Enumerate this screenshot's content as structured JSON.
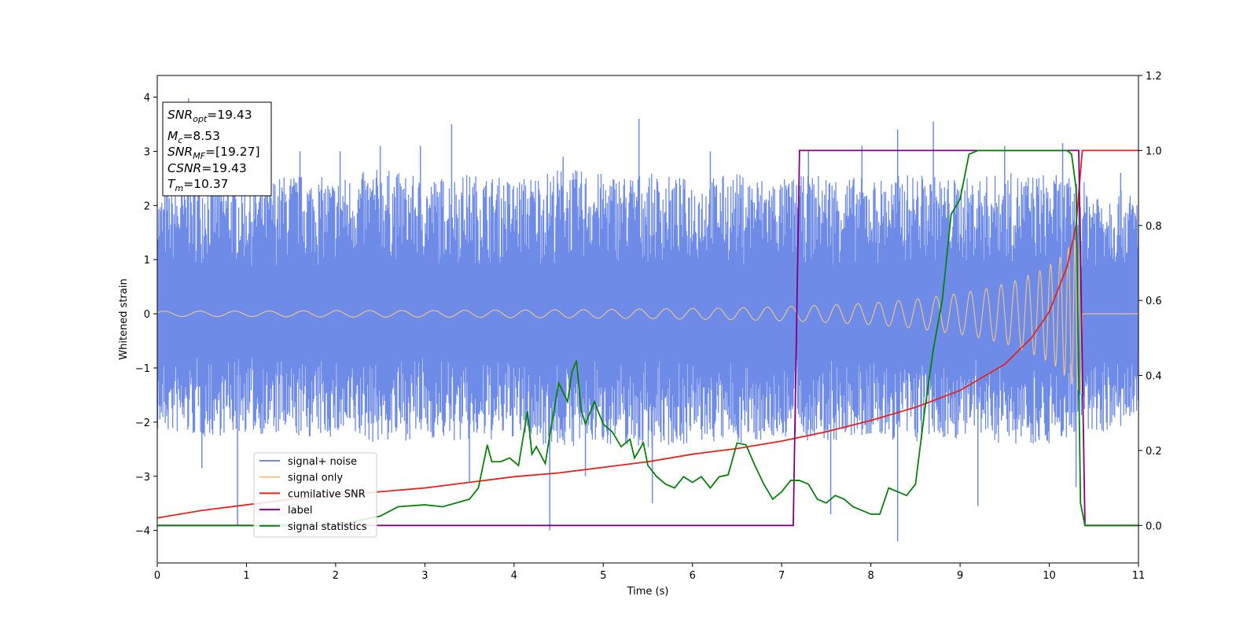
{
  "chart_data": {
    "type": "line",
    "xlabel": "Time (s)",
    "ylabel": "Whitened strain",
    "xlim": [
      0,
      11
    ],
    "ylim": [
      -4.6,
      4.4
    ],
    "y2lim": [
      -0.1,
      1.2
    ],
    "xticks": [
      "0",
      "1",
      "2",
      "3",
      "4",
      "5",
      "6",
      "7",
      "8",
      "9",
      "10",
      "11"
    ],
    "yticks": [
      "−4",
      "−3",
      "−2",
      "−1",
      "0",
      "1",
      "2",
      "3",
      "4"
    ],
    "y2ticks": [
      "0.0",
      "0.2",
      "0.4",
      "0.6",
      "0.8",
      "1.0",
      "1.2"
    ],
    "grid": false,
    "legend_position": "lower-left",
    "info_box": {
      "lines": [
        {
          "sym": "SNR",
          "sub": "opt",
          "val": "=19.43"
        },
        {
          "sym": "M",
          "sub": "c",
          "val": "=8.53"
        },
        {
          "sym": "SNR",
          "sub": "MF",
          "val": "=[19.27]"
        },
        {
          "sym": "CSNR",
          "sub": "",
          "val": "=19.43"
        },
        {
          "sym": "T",
          "sub": "m",
          "val": "=10.37"
        }
      ]
    },
    "noise_series": {
      "name": "signal+ noise",
      "color": "#6f8be8",
      "axis": "left",
      "x": [
        0,
        0.5,
        1,
        1.5,
        2,
        2.5,
        3,
        3.5,
        4,
        4.5,
        5,
        5.5,
        6,
        6.5,
        7,
        7.5,
        8,
        8.5,
        9,
        9.5,
        10,
        10.5,
        11
      ],
      "upper": [
        2.2,
        2.6,
        2.4,
        2.6,
        2.5,
        2.7,
        2.5,
        2.6,
        2.5,
        2.7,
        2.6,
        2.6,
        2.5,
        2.6,
        2.5,
        2.6,
        2.5,
        2.6,
        2.5,
        2.6,
        2.6,
        2.4,
        2.2
      ],
      "lower": [
        -2.2,
        -2.3,
        -2.2,
        -2.3,
        -2.3,
        -2.4,
        -2.3,
        -2.4,
        -2.3,
        -2.5,
        -2.4,
        -2.5,
        -2.4,
        -2.4,
        -2.3,
        -2.4,
        -2.3,
        -2.4,
        -2.3,
        -2.4,
        -2.4,
        -2.2,
        -2.1
      ],
      "spikes": [
        [
          0.35,
          3.98
        ],
        [
          0.5,
          -2.85
        ],
        [
          0.9,
          -3.9
        ],
        [
          1.1,
          3.1
        ],
        [
          1.6,
          3.0
        ],
        [
          2.05,
          3.0
        ],
        [
          2.5,
          3.1
        ],
        [
          2.95,
          3.1
        ],
        [
          3.3,
          3.5
        ],
        [
          3.5,
          -3.1
        ],
        [
          4.4,
          -4.0
        ],
        [
          4.55,
          2.9
        ],
        [
          4.8,
          -3.0
        ],
        [
          5.4,
          3.6
        ],
        [
          5.55,
          -3.5
        ],
        [
          6.2,
          3.0
        ],
        [
          7.3,
          3.0
        ],
        [
          7.55,
          -3.7
        ],
        [
          7.9,
          3.1
        ],
        [
          8.3,
          3.4
        ],
        [
          8.3,
          -4.2
        ],
        [
          8.7,
          3.55
        ],
        [
          9.2,
          -3.55
        ],
        [
          9.5,
          3.1
        ],
        [
          10.15,
          3.15
        ],
        [
          10.3,
          -3.2
        ],
        [
          10.8,
          2.6
        ]
      ]
    },
    "series": [
      {
        "name": "signal only",
        "color": "#f5c782",
        "axis": "left",
        "x": [
          0,
          1,
          2,
          3,
          4,
          5,
          6,
          6.5,
          7,
          7.5,
          8,
          8.5,
          9,
          9.3,
          9.6,
          9.9,
          10.1,
          10.25,
          10.37,
          10.4,
          11
        ],
        "y_envelope": [
          0.05,
          0.05,
          0.06,
          0.06,
          0.07,
          0.08,
          0.1,
          0.11,
          0.13,
          0.16,
          0.2,
          0.27,
          0.38,
          0.47,
          0.6,
          0.8,
          1.0,
          1.3,
          1.5,
          0.0,
          0.0
        ]
      },
      {
        "name": "cumilative SNR",
        "color": "#e8211c",
        "axis": "right",
        "x": [
          0,
          0.5,
          1,
          1.5,
          2,
          2.5,
          3,
          3.5,
          4,
          4.5,
          5,
          5.5,
          6,
          6.5,
          7,
          7.5,
          8,
          8.5,
          9,
          9.5,
          9.8,
          10,
          10.2,
          10.3,
          10.37,
          11
        ],
        "y": [
          0.02,
          0.04,
          0.055,
          0.07,
          0.08,
          0.09,
          0.1,
          0.115,
          0.13,
          0.14,
          0.155,
          0.17,
          0.19,
          0.205,
          0.225,
          0.25,
          0.28,
          0.315,
          0.36,
          0.43,
          0.5,
          0.57,
          0.69,
          0.8,
          1.0,
          1.0
        ]
      },
      {
        "name": "label",
        "color": "#800080",
        "axis": "right",
        "x": [
          0,
          7.13,
          7.2,
          10.33,
          10.4,
          11
        ],
        "y": [
          0.0,
          0.0,
          1.0,
          1.0,
          0.0,
          0.0
        ]
      },
      {
        "name": "signal statistics",
        "color": "#098009",
        "axis": "right",
        "x": [
          0,
          1,
          2,
          2.5,
          2.7,
          3.0,
          3.2,
          3.5,
          3.6,
          3.7,
          3.75,
          3.85,
          3.95,
          4.05,
          4.15,
          4.2,
          4.25,
          4.35,
          4.4,
          4.5,
          4.6,
          4.65,
          4.7,
          4.75,
          4.8,
          4.9,
          5.0,
          5.1,
          5.2,
          5.3,
          5.35,
          5.45,
          5.5,
          5.6,
          5.7,
          5.8,
          5.9,
          6.0,
          6.1,
          6.2,
          6.3,
          6.4,
          6.5,
          6.6,
          6.7,
          6.8,
          6.9,
          7.0,
          7.1,
          7.2,
          7.3,
          7.4,
          7.5,
          7.6,
          7.7,
          7.8,
          7.9,
          8.0,
          8.1,
          8.2,
          8.3,
          8.4,
          8.5,
          8.6,
          8.7,
          8.8,
          8.9,
          9.0,
          9.1,
          9.2,
          9.5,
          9.8,
          10.0,
          10.2,
          10.25,
          10.3,
          10.35,
          10.4,
          10.5,
          11
        ],
        "y": [
          0.0,
          0.0,
          0.0,
          0.025,
          0.05,
          0.055,
          0.05,
          0.07,
          0.1,
          0.215,
          0.17,
          0.17,
          0.18,
          0.16,
          0.305,
          0.19,
          0.21,
          0.165,
          0.24,
          0.38,
          0.33,
          0.41,
          0.44,
          0.31,
          0.27,
          0.33,
          0.27,
          0.25,
          0.21,
          0.23,
          0.18,
          0.22,
          0.16,
          0.13,
          0.11,
          0.1,
          0.13,
          0.115,
          0.13,
          0.1,
          0.13,
          0.135,
          0.22,
          0.215,
          0.16,
          0.11,
          0.07,
          0.09,
          0.12,
          0.12,
          0.11,
          0.07,
          0.06,
          0.08,
          0.07,
          0.05,
          0.04,
          0.03,
          0.03,
          0.1,
          0.09,
          0.08,
          0.11,
          0.3,
          0.47,
          0.6,
          0.83,
          0.87,
          0.99,
          1.0,
          1.0,
          1.0,
          1.0,
          1.0,
          0.99,
          0.9,
          0.06,
          0.0,
          0.0,
          0.0
        ]
      }
    ],
    "legend": [
      "signal+ noise",
      "signal only",
      "cumilative SNR",
      "label",
      "signal statistics"
    ]
  }
}
